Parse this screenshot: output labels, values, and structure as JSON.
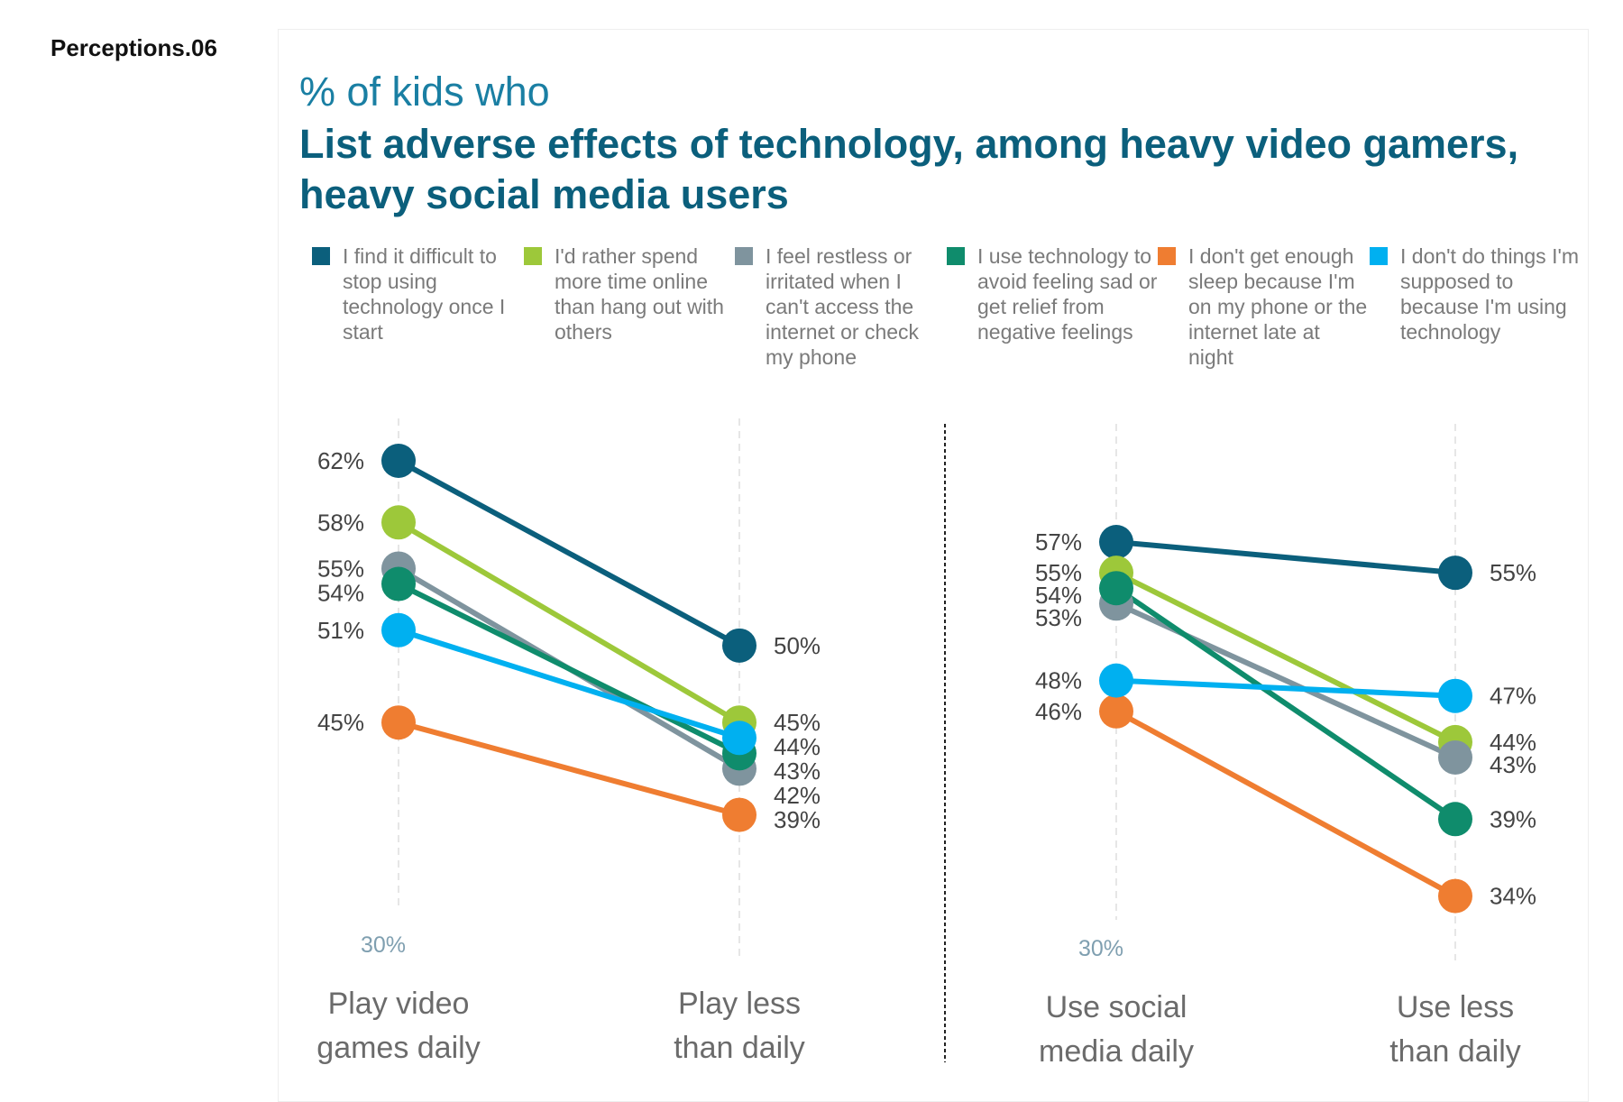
{
  "tag": "Perceptions.06",
  "subtitle": "% of kids who",
  "title": "List adverse effects of technology, among heavy video gamers, heavy social media users",
  "chart_data": [
    {
      "type": "line",
      "categories": [
        "Play video games daily",
        "Play less than daily"
      ],
      "y_min_label": "30%",
      "ylim": [
        30,
        65
      ],
      "grid": false,
      "series": [
        {
          "name": "I find it difficult to stop using technology once I start",
          "color": "#0b5f7c",
          "values": [
            62,
            50
          ]
        },
        {
          "name": "I'd rather spend more time online than hang out with others",
          "color": "#9dc83a",
          "values": [
            58,
            45
          ]
        },
        {
          "name": "I feel restless or irritated when I can't access the internet or check my phone",
          "color": "#7f949e",
          "values": [
            55,
            42
          ]
        },
        {
          "name": "I use technology to avoid feeling sad or get relief from negative feelings",
          "color": "#0f8c6c",
          "values": [
            54,
            43
          ]
        },
        {
          "name": "I don't get enough sleep because I'm on my phone or the internet late at night",
          "color": "#ef7d31",
          "values": [
            45,
            39
          ]
        },
        {
          "name": "I don't do things I'm supposed to because I'm using technology",
          "color": "#00b0f0",
          "values": [
            51,
            44
          ]
        }
      ]
    },
    {
      "type": "line",
      "categories": [
        "Use social media daily",
        "Use less than daily"
      ],
      "y_min_label": "30%",
      "ylim": [
        30,
        65
      ],
      "grid": false,
      "series": [
        {
          "name": "I find it difficult to stop using technology once I start",
          "color": "#0b5f7c",
          "values": [
            57,
            55
          ]
        },
        {
          "name": "I'd rather spend more time online than hang out with others",
          "color": "#9dc83a",
          "values": [
            55,
            44
          ]
        },
        {
          "name": "I feel restless or irritated when I can't access the internet or check my phone",
          "color": "#7f949e",
          "values": [
            53,
            43
          ]
        },
        {
          "name": "I use technology to avoid feeling sad or get relief from negative feelings",
          "color": "#0f8c6c",
          "values": [
            54,
            39
          ]
        },
        {
          "name": "I don't get enough sleep because I'm on my phone or the internet late at night",
          "color": "#ef7d31",
          "values": [
            46,
            34
          ]
        },
        {
          "name": "I don't do things I'm supposed to because I'm using technology",
          "color": "#00b0f0",
          "values": [
            48,
            47
          ]
        }
      ]
    }
  ],
  "legend": [
    {
      "label": "I find it difficult to stop using technology once I start",
      "color": "#0b5f7c"
    },
    {
      "label": "I'd rather spend more time online than hang out with others",
      "color": "#9dc83a"
    },
    {
      "label": "I feel restless or irritated when I can't access the internet or check my phone",
      "color": "#7f949e"
    },
    {
      "label": "I use technology to avoid feeling sad or get relief from negative feelings",
      "color": "#0f8c6c"
    },
    {
      "label": "I don't get enough sleep because I'm on my phone or the internet late at night",
      "color": "#ef7d31"
    },
    {
      "label": "I don't do things I'm supposed to because I'm using technology",
      "color": "#00b0f0"
    }
  ]
}
